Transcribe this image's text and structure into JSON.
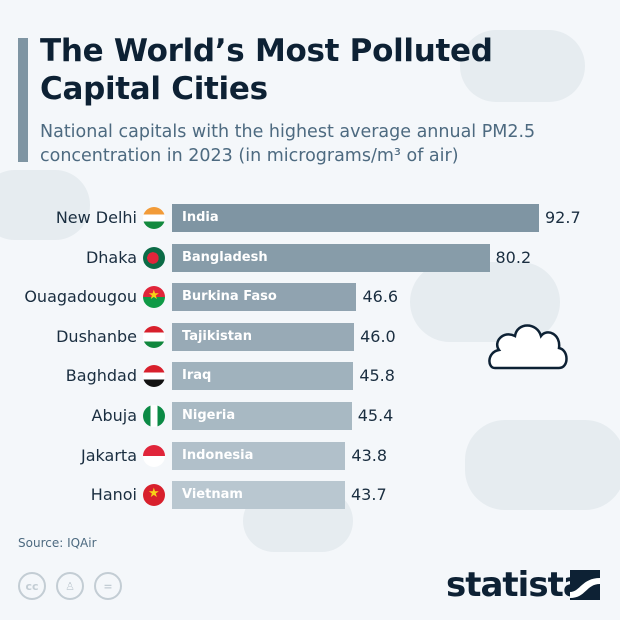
{
  "title": "The World’s Most Polluted Capital Cities",
  "subtitle": "National capitals with the highest average annual PM2.5 concentration in 2023 (in micrograms/m³ of air)",
  "source": "Source: IQAir",
  "brand": "statista",
  "license_icons": [
    "cc-icon",
    "attribution-icon",
    "no-derivatives-icon"
  ],
  "colors": {
    "bar_dark": "#7f95a3",
    "bar_light": "#b9c7d0",
    "title": "#0d2134",
    "accent": "#7f95a3"
  },
  "chart_data": {
    "type": "bar",
    "orientation": "horizontal",
    "title": "The World’s Most Polluted Capital Cities",
    "categories": [
      "New Delhi",
      "Dhaka",
      "Ouagadougou",
      "Dushanbe",
      "Baghdad",
      "Abuja",
      "Jakarta",
      "Hanoi"
    ],
    "countries": [
      "India",
      "Bangladesh",
      "Burkina Faso",
      "Tajikistan",
      "Iraq",
      "Nigeria",
      "Indonesia",
      "Vietnam"
    ],
    "values": [
      92.7,
      80.2,
      46.6,
      46.0,
      45.8,
      45.4,
      43.8,
      43.7
    ],
    "value_labels": [
      "92.7",
      "80.2",
      "46.6",
      "46.0",
      "45.8",
      "45.4",
      "43.8",
      "43.7"
    ],
    "flags": [
      "india-flag",
      "bangladesh-flag",
      "burkina-faso-flag",
      "tajikistan-flag",
      "iraq-flag",
      "nigeria-flag",
      "indonesia-flag",
      "vietnam-flag"
    ],
    "xlabel": "",
    "ylabel": "",
    "grid": false
  }
}
